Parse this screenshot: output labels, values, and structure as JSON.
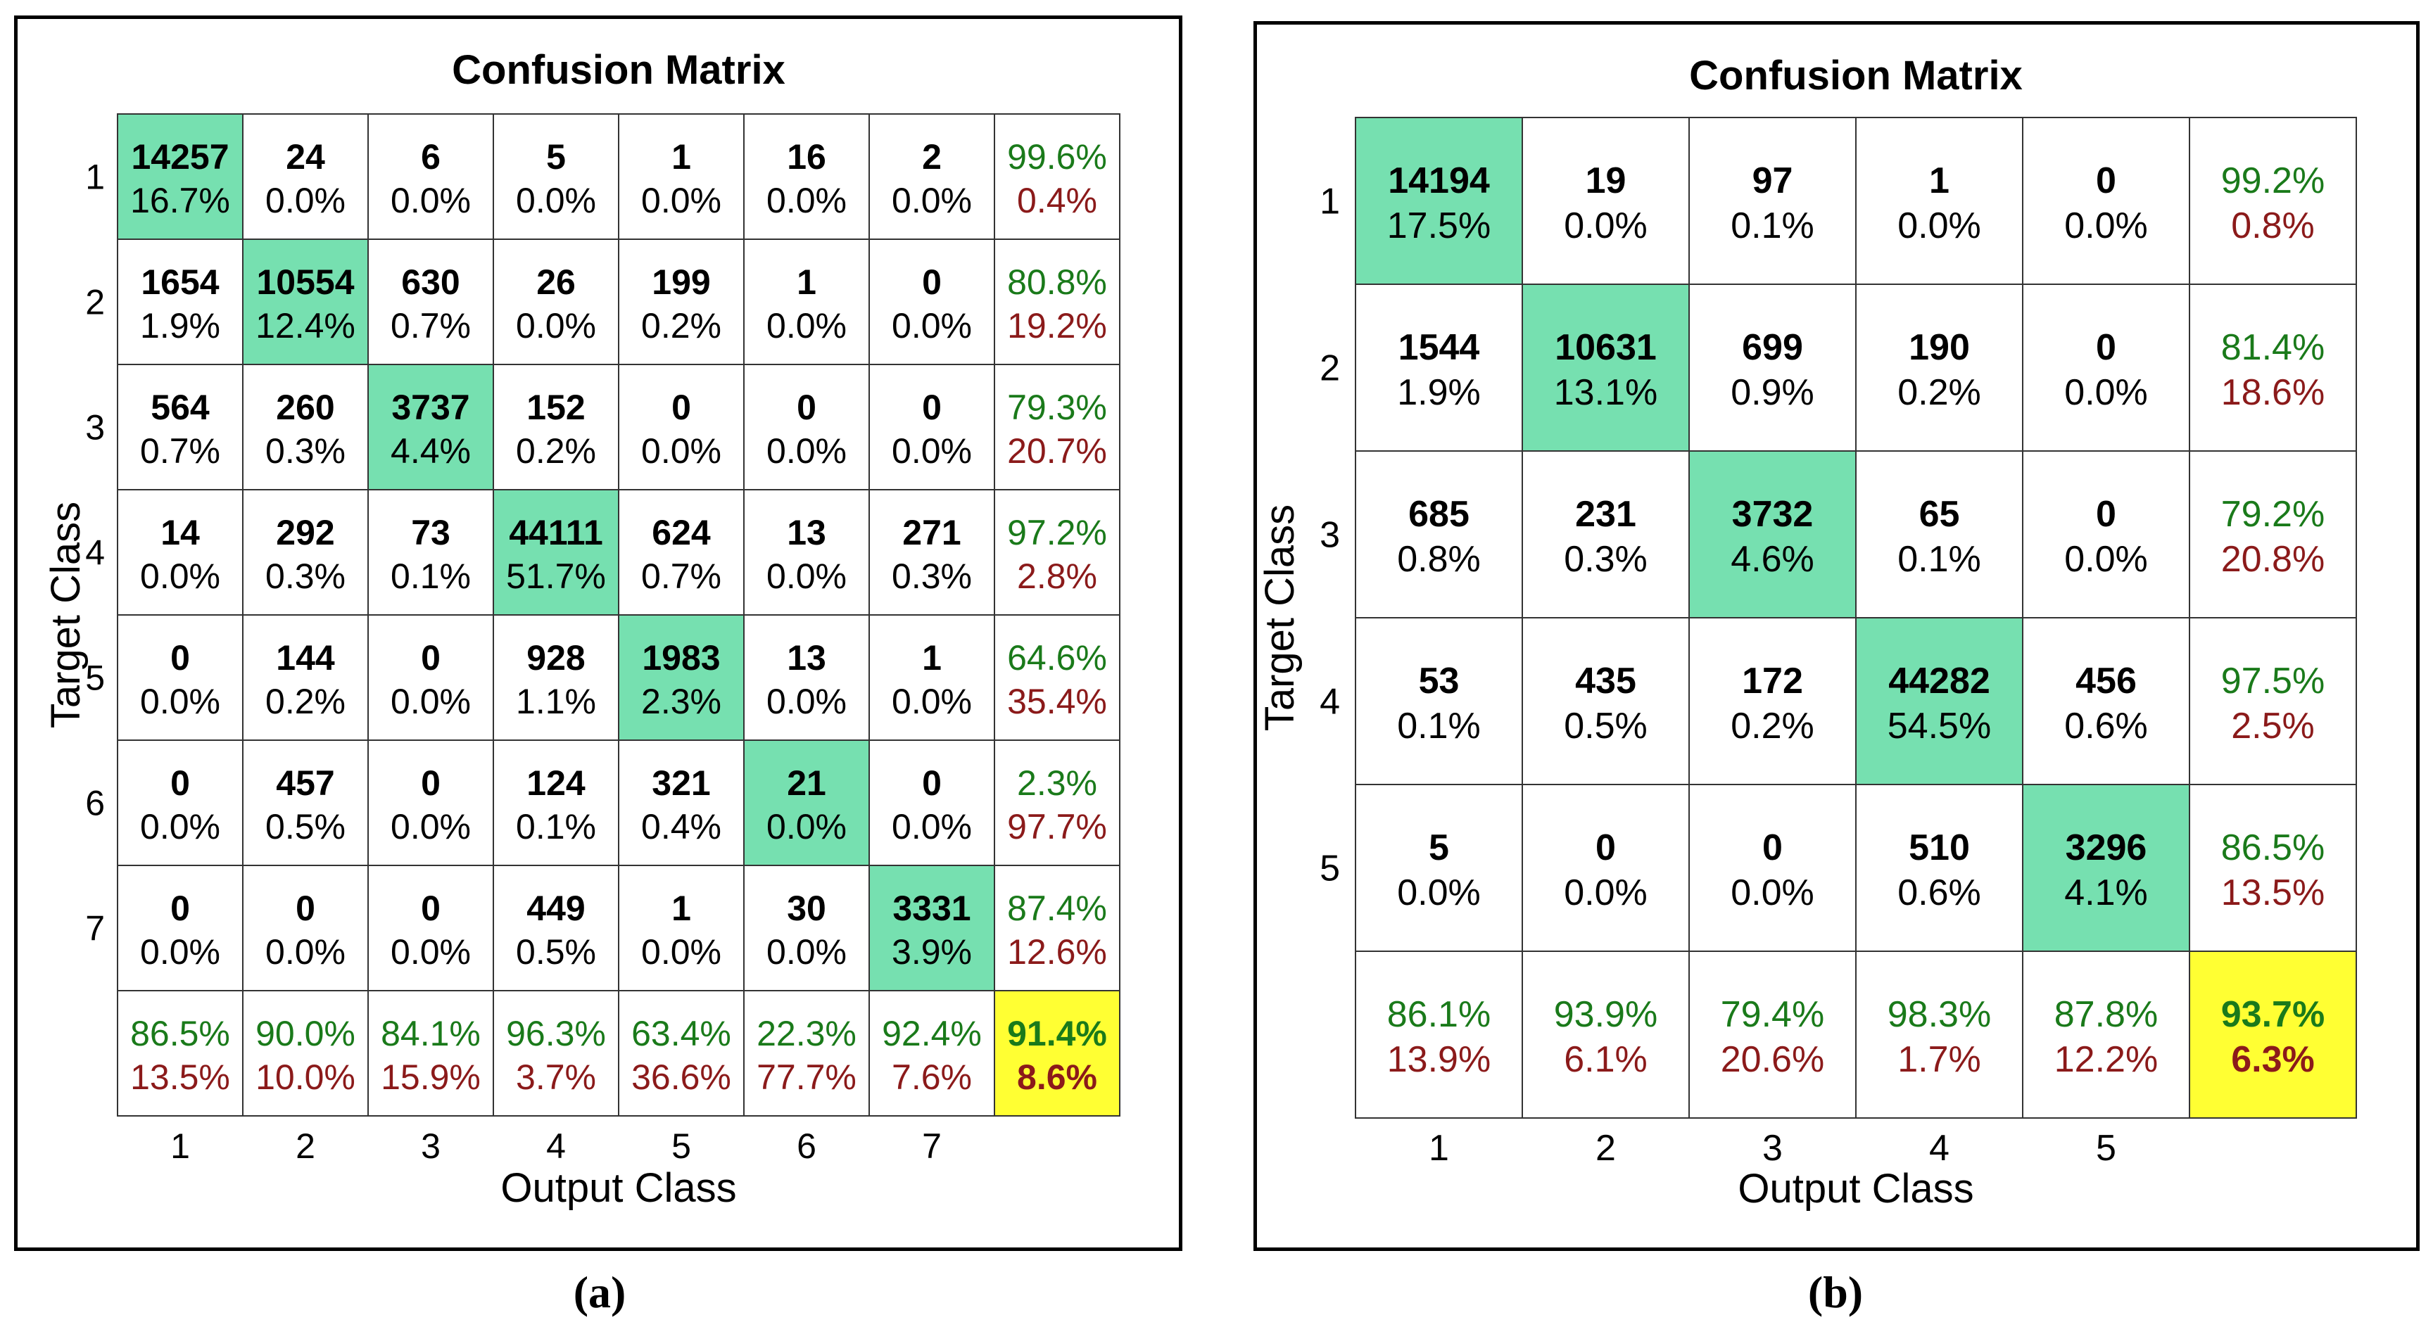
{
  "colors": {
    "diag": "#76E0B0",
    "total": "#FFFF33",
    "green": "#1A7A1A",
    "red": "#8B1A1A",
    "grid": "#333333",
    "text": "#000000"
  },
  "chart_data": [
    {
      "type": "heatmap",
      "panel_label": "(a)",
      "title": "Confusion Matrix",
      "xlabel": "Output Class",
      "ylabel": "Target Class",
      "class_labels": [
        "1",
        "2",
        "3",
        "4",
        "5",
        "6",
        "7"
      ],
      "cells": [
        [
          {
            "count": "14257",
            "pct": "16.7%"
          },
          {
            "count": "24",
            "pct": "0.0%"
          },
          {
            "count": "6",
            "pct": "0.0%"
          },
          {
            "count": "5",
            "pct": "0.0%"
          },
          {
            "count": "1",
            "pct": "0.0%"
          },
          {
            "count": "16",
            "pct": "0.0%"
          },
          {
            "count": "2",
            "pct": "0.0%"
          }
        ],
        [
          {
            "count": "1654",
            "pct": "1.9%"
          },
          {
            "count": "10554",
            "pct": "12.4%"
          },
          {
            "count": "630",
            "pct": "0.7%"
          },
          {
            "count": "26",
            "pct": "0.0%"
          },
          {
            "count": "199",
            "pct": "0.2%"
          },
          {
            "count": "1",
            "pct": "0.0%"
          },
          {
            "count": "0",
            "pct": "0.0%"
          }
        ],
        [
          {
            "count": "564",
            "pct": "0.7%"
          },
          {
            "count": "260",
            "pct": "0.3%"
          },
          {
            "count": "3737",
            "pct": "4.4%"
          },
          {
            "count": "152",
            "pct": "0.2%"
          },
          {
            "count": "0",
            "pct": "0.0%"
          },
          {
            "count": "0",
            "pct": "0.0%"
          },
          {
            "count": "0",
            "pct": "0.0%"
          }
        ],
        [
          {
            "count": "14",
            "pct": "0.0%"
          },
          {
            "count": "292",
            "pct": "0.3%"
          },
          {
            "count": "73",
            "pct": "0.1%"
          },
          {
            "count": "44111",
            "pct": "51.7%"
          },
          {
            "count": "624",
            "pct": "0.7%"
          },
          {
            "count": "13",
            "pct": "0.0%"
          },
          {
            "count": "271",
            "pct": "0.3%"
          }
        ],
        [
          {
            "count": "0",
            "pct": "0.0%"
          },
          {
            "count": "144",
            "pct": "0.2%"
          },
          {
            "count": "0",
            "pct": "0.0%"
          },
          {
            "count": "928",
            "pct": "1.1%"
          },
          {
            "count": "1983",
            "pct": "2.3%"
          },
          {
            "count": "13",
            "pct": "0.0%"
          },
          {
            "count": "1",
            "pct": "0.0%"
          }
        ],
        [
          {
            "count": "0",
            "pct": "0.0%"
          },
          {
            "count": "457",
            "pct": "0.5%"
          },
          {
            "count": "0",
            "pct": "0.0%"
          },
          {
            "count": "124",
            "pct": "0.1%"
          },
          {
            "count": "321",
            "pct": "0.4%"
          },
          {
            "count": "21",
            "pct": "0.0%"
          },
          {
            "count": "0",
            "pct": "0.0%"
          }
        ],
        [
          {
            "count": "0",
            "pct": "0.0%"
          },
          {
            "count": "0",
            "pct": "0.0%"
          },
          {
            "count": "0",
            "pct": "0.0%"
          },
          {
            "count": "449",
            "pct": "0.5%"
          },
          {
            "count": "1",
            "pct": "0.0%"
          },
          {
            "count": "30",
            "pct": "0.0%"
          },
          {
            "count": "3331",
            "pct": "3.9%"
          }
        ]
      ],
      "row_summary": [
        {
          "correct": "99.6%",
          "wrong": "0.4%"
        },
        {
          "correct": "80.8%",
          "wrong": "19.2%"
        },
        {
          "correct": "79.3%",
          "wrong": "20.7%"
        },
        {
          "correct": "97.2%",
          "wrong": "2.8%"
        },
        {
          "correct": "64.6%",
          "wrong": "35.4%"
        },
        {
          "correct": "2.3%",
          "wrong": "97.7%"
        },
        {
          "correct": "87.4%",
          "wrong": "12.6%"
        }
      ],
      "col_summary": [
        {
          "correct": "86.5%",
          "wrong": "13.5%"
        },
        {
          "correct": "90.0%",
          "wrong": "10.0%"
        },
        {
          "correct": "84.1%",
          "wrong": "15.9%"
        },
        {
          "correct": "96.3%",
          "wrong": "3.7%"
        },
        {
          "correct": "63.4%",
          "wrong": "36.6%"
        },
        {
          "correct": "22.3%",
          "wrong": "77.7%"
        },
        {
          "correct": "92.4%",
          "wrong": "7.6%"
        }
      ],
      "overall": {
        "correct": "91.4%",
        "wrong": "8.6%"
      }
    },
    {
      "type": "heatmap",
      "panel_label": "(b)",
      "title": "Confusion Matrix",
      "xlabel": "Output Class",
      "ylabel": "Target Class",
      "class_labels": [
        "1",
        "2",
        "3",
        "4",
        "5"
      ],
      "cells": [
        [
          {
            "count": "14194",
            "pct": "17.5%"
          },
          {
            "count": "19",
            "pct": "0.0%"
          },
          {
            "count": "97",
            "pct": "0.1%"
          },
          {
            "count": "1",
            "pct": "0.0%"
          },
          {
            "count": "0",
            "pct": "0.0%"
          }
        ],
        [
          {
            "count": "1544",
            "pct": "1.9%"
          },
          {
            "count": "10631",
            "pct": "13.1%"
          },
          {
            "count": "699",
            "pct": "0.9%"
          },
          {
            "count": "190",
            "pct": "0.2%"
          },
          {
            "count": "0",
            "pct": "0.0%"
          }
        ],
        [
          {
            "count": "685",
            "pct": "0.8%"
          },
          {
            "count": "231",
            "pct": "0.3%"
          },
          {
            "count": "3732",
            "pct": "4.6%"
          },
          {
            "count": "65",
            "pct": "0.1%"
          },
          {
            "count": "0",
            "pct": "0.0%"
          }
        ],
        [
          {
            "count": "53",
            "pct": "0.1%"
          },
          {
            "count": "435",
            "pct": "0.5%"
          },
          {
            "count": "172",
            "pct": "0.2%"
          },
          {
            "count": "44282",
            "pct": "54.5%"
          },
          {
            "count": "456",
            "pct": "0.6%"
          }
        ],
        [
          {
            "count": "5",
            "pct": "0.0%"
          },
          {
            "count": "0",
            "pct": "0.0%"
          },
          {
            "count": "0",
            "pct": "0.0%"
          },
          {
            "count": "510",
            "pct": "0.6%"
          },
          {
            "count": "3296",
            "pct": "4.1%"
          }
        ]
      ],
      "row_summary": [
        {
          "correct": "99.2%",
          "wrong": "0.8%"
        },
        {
          "correct": "81.4%",
          "wrong": "18.6%"
        },
        {
          "correct": "79.2%",
          "wrong": "20.8%"
        },
        {
          "correct": "97.5%",
          "wrong": "2.5%"
        },
        {
          "correct": "86.5%",
          "wrong": "13.5%"
        }
      ],
      "col_summary": [
        {
          "correct": "86.1%",
          "wrong": "13.9%"
        },
        {
          "correct": "93.9%",
          "wrong": "6.1%"
        },
        {
          "correct": "79.4%",
          "wrong": "20.6%"
        },
        {
          "correct": "98.3%",
          "wrong": "1.7%"
        },
        {
          "correct": "87.8%",
          "wrong": "12.2%"
        }
      ],
      "overall": {
        "correct": "93.7%",
        "wrong": "6.3%"
      }
    }
  ]
}
